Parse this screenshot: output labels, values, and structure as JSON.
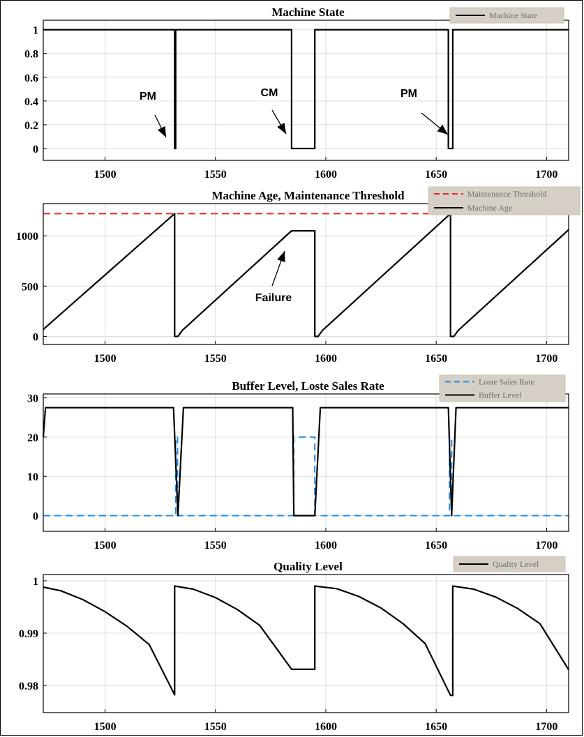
{
  "chart_data": [
    {
      "type": "line",
      "title": "Machine State",
      "xlim": [
        1472,
        1710
      ],
      "ylim": [
        -0.1,
        1.08
      ],
      "xticks": [
        "1500",
        "1550",
        "1600",
        "1650",
        "1700"
      ],
      "yticks": [
        "1",
        "0.8",
        "0.6",
        "0.4",
        "0.2",
        "0"
      ],
      "legend": {
        "position": "top-right"
      },
      "series": [
        {
          "name": "Machine State",
          "color": "#000000",
          "style": "solid",
          "x": [
            1472,
            1531.5,
            1531.5,
            1532.0,
            1532.0,
            1584.5,
            1584.5,
            1595.0,
            1595.0,
            1655.5,
            1655.5,
            1657.5,
            1657.5,
            1710
          ],
          "y": [
            1,
            1,
            0,
            0,
            1,
            1,
            0,
            0,
            1,
            1,
            0,
            0,
            1,
            1
          ]
        }
      ],
      "annotations": [
        {
          "text": "PM",
          "x": 1531,
          "y": 0
        },
        {
          "text": "CM",
          "x": 1584,
          "y": 0
        },
        {
          "text": "PM",
          "x": 1655,
          "y": 0
        }
      ]
    },
    {
      "type": "line",
      "title": "Machine Age, Maintenance Threshold",
      "xlim": [
        1472,
        1710
      ],
      "ylim": [
        -80,
        1320
      ],
      "xticks": [
        "1500",
        "1550",
        "1600",
        "1650",
        "1700"
      ],
      "yticks": [
        "1000",
        "500",
        "0"
      ],
      "legend": {
        "position": "top-right"
      },
      "series": [
        {
          "name": "Maintenance Threshold",
          "color": "#e8262a",
          "style": "dashed",
          "x": [
            1472,
            1710
          ],
          "y": [
            1220,
            1220
          ]
        },
        {
          "name": "Machine Age",
          "color": "#000000",
          "style": "solid",
          "x": [
            1472,
            1531.5,
            1531.5,
            1533,
            1535,
            1584.5,
            1595,
            1595,
            1596.5,
            1598.5,
            1656.5,
            1656.5,
            1658,
            1660,
            1710
          ],
          "y": [
            70,
            1220,
            0,
            0,
            60,
            1050,
            1050,
            0,
            0,
            60,
            1220,
            0,
            0,
            60,
            1060
          ]
        }
      ],
      "annotations": [
        {
          "text": "Failure",
          "x": 1584,
          "y": 1050
        }
      ]
    },
    {
      "type": "line",
      "title": "Buffer Level, Loste Sales Rate",
      "xlim": [
        1472,
        1710
      ],
      "ylim": [
        -4,
        31
      ],
      "xticks": [
        "1500",
        "1550",
        "1600",
        "1650",
        "1700"
      ],
      "yticks": [
        "30",
        "20",
        "10",
        "0"
      ],
      "legend": {
        "position": "top-right"
      },
      "series": [
        {
          "name": "Loste Sales Rate",
          "color": "#1e8ce6",
          "style": "dashed",
          "x": [
            1472,
            1532,
            1532,
            1532.8,
            1532.8,
            1585.5,
            1585.5,
            1595,
            1595,
            1656,
            1656,
            1657,
            1657,
            1710
          ],
          "y": [
            0,
            0,
            20,
            20,
            0,
            0,
            20,
            20,
            0,
            0,
            20,
            20,
            0,
            0
          ]
        },
        {
          "name": "Buffer Level",
          "color": "#000000",
          "style": "solid",
          "x": [
            1472,
            1473,
            1531,
            1533,
            1535.5,
            1585,
            1585.5,
            1595,
            1597.5,
            1655.5,
            1657,
            1659,
            1710
          ],
          "y": [
            20,
            27.5,
            27.5,
            0,
            27.5,
            27.5,
            0,
            0,
            27.5,
            27.5,
            0,
            27.5,
            27.5
          ]
        }
      ]
    },
    {
      "type": "line",
      "title": "Quality Level",
      "xlim": [
        1472,
        1710
      ],
      "ylim": [
        0.9748,
        1.0012
      ],
      "xticks": [
        "1500",
        "1550",
        "1600",
        "1650",
        "1700"
      ],
      "yticks": [
        "1",
        "0.99",
        "0.98"
      ],
      "legend": {
        "position": "top-right"
      },
      "series": [
        {
          "name": "Quality Level",
          "color": "#000000",
          "style": "solid",
          "x": [
            1472,
            1480,
            1490,
            1500,
            1510,
            1520,
            1531.5,
            1531.5,
            1540,
            1550,
            1560,
            1570,
            1584.5,
            1595,
            1595,
            1605,
            1615,
            1625,
            1635,
            1645,
            1656.5,
            1657.5,
            1657.5,
            1667,
            1677,
            1687,
            1697,
            1710
          ],
          "y": [
            0.9988,
            0.9981,
            0.9964,
            0.9941,
            0.9913,
            0.9878,
            0.9782,
            0.999,
            0.9984,
            0.9968,
            0.9945,
            0.9915,
            0.9831,
            0.9831,
            0.999,
            0.9985,
            0.997,
            0.9948,
            0.9918,
            0.988,
            0.9781,
            0.9781,
            0.999,
            0.9984,
            0.9969,
            0.9947,
            0.9918,
            0.983
          ]
        }
      ]
    }
  ]
}
